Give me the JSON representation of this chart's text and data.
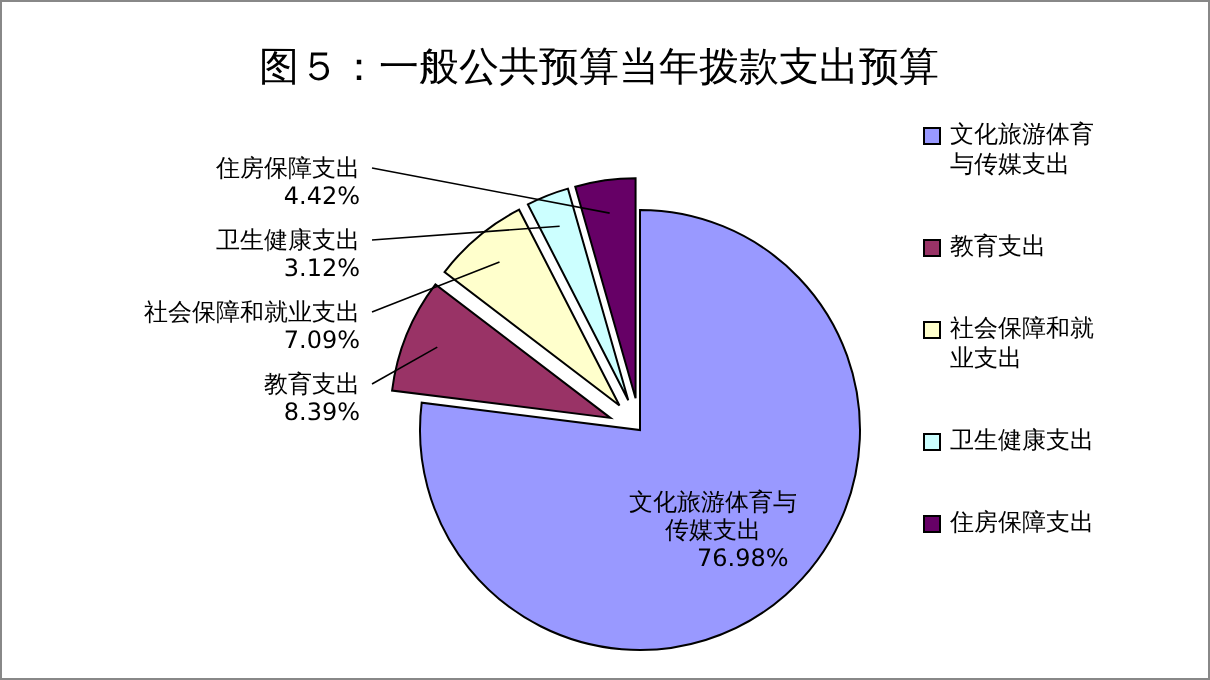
{
  "chart_data": {
    "type": "pie",
    "title": "图５：一般公共预算当年拨款支出预算",
    "categories": [
      "文化旅游体育与传媒支出",
      "教育支出",
      "社会保障和就业支出",
      "卫生健康支出",
      "住房保障支出"
    ],
    "values": [
      76.98,
      8.39,
      7.09,
      3.12,
      4.42
    ],
    "colors": [
      "#9999ff",
      "#993366",
      "#ffffcc",
      "#ccffff",
      "#660066"
    ],
    "value_labels": [
      "76.98%",
      "8.39%",
      "7.09%",
      "3.12%",
      "4.42%"
    ],
    "legend": "right"
  }
}
